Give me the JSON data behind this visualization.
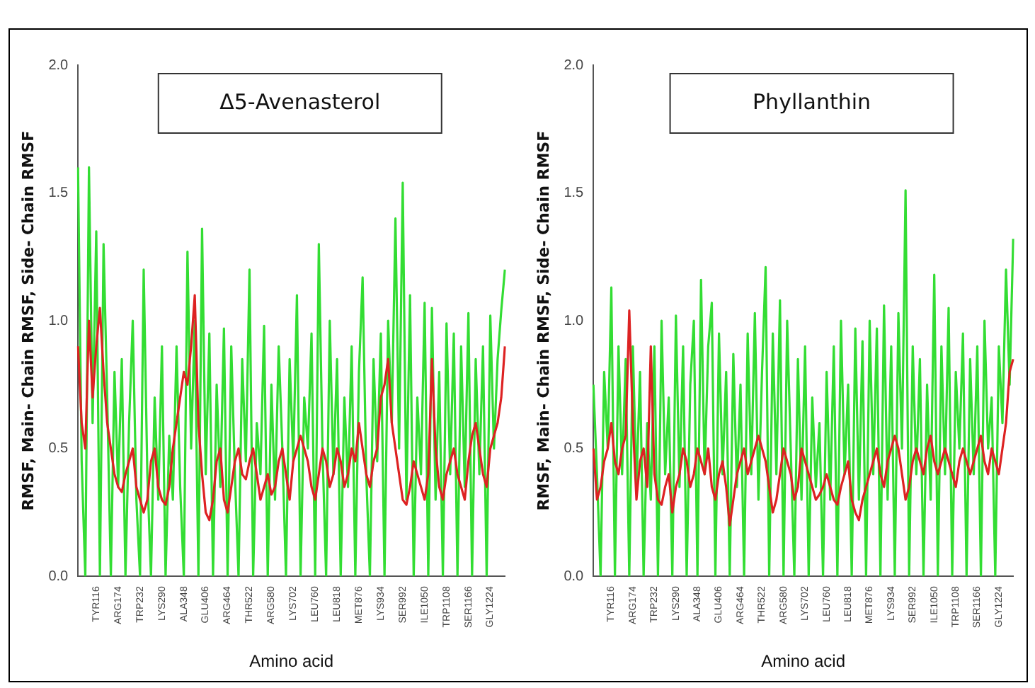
{
  "chart_data": [
    {
      "type": "line",
      "title": "Δ5-Avenasterol",
      "xlabel": "Amino acid",
      "ylabel": "RMSF, Main- Chain RMSF, Side- Chain RMSF",
      "ylim": [
        0,
        2
      ],
      "yticks": [
        {
          "value": 0,
          "label": "0.0"
        },
        {
          "value": 0.5,
          "label": "0.5"
        },
        {
          "value": 1,
          "label": "1.0"
        },
        {
          "value": 1.5,
          "label": "1.5"
        },
        {
          "value": 2,
          "label": "2.0"
        }
      ],
      "grid": false,
      "legend": false,
      "marker": "none",
      "categories": [
        null,
        null,
        null,
        null,
        null,
        "TYR116",
        null,
        null,
        null,
        null,
        null,
        "ARG174",
        null,
        null,
        null,
        null,
        null,
        "TRP232",
        null,
        null,
        null,
        null,
        null,
        "LYS290",
        null,
        null,
        null,
        null,
        null,
        "ALA348",
        null,
        null,
        null,
        null,
        null,
        "GLU406",
        null,
        null,
        null,
        null,
        null,
        "ARG464",
        null,
        null,
        null,
        null,
        null,
        "THR522",
        null,
        null,
        null,
        null,
        null,
        "ARG580",
        null,
        null,
        null,
        null,
        null,
        "LYS702",
        null,
        null,
        null,
        null,
        null,
        "LEU760",
        null,
        null,
        null,
        null,
        null,
        "LEU818",
        null,
        null,
        null,
        null,
        null,
        "MET876",
        null,
        null,
        null,
        null,
        null,
        "LYS934",
        null,
        null,
        null,
        null,
        null,
        "SER992",
        null,
        null,
        null,
        null,
        null,
        "ILE1050",
        null,
        null,
        null,
        null,
        null,
        "TRP1108",
        null,
        null,
        null,
        null,
        null,
        "SER1166",
        null,
        null,
        null,
        null,
        null,
        "GLY1224",
        null,
        null,
        null,
        null
      ],
      "series": [
        {
          "color": "#33dd33",
          "values": [
            1.6,
            0.45,
            0,
            1.6,
            0.6,
            1.35,
            0,
            1.3,
            0.7,
            0,
            0.8,
            0.35,
            0.85,
            0,
            0.6,
            1.0,
            0.3,
            0,
            1.2,
            0.4,
            0,
            0.7,
            0.3,
            0.9,
            0,
            0.55,
            0.3,
            0.9,
            0.35,
            0,
            1.27,
            0.5,
            1.0,
            0,
            1.36,
            0.4,
            0.95,
            0,
            0.75,
            0.35,
            0.97,
            0,
            0.9,
            0.4,
            0,
            0.85,
            0.45,
            1.2,
            0,
            0.6,
            0.4,
            0.98,
            0,
            0.75,
            0.3,
            0.9,
            0.5,
            0,
            0.85,
            0.45,
            1.1,
            0,
            0.7,
            0.5,
            0.95,
            0,
            1.3,
            0.5,
            0,
            1.0,
            0.4,
            0.85,
            0,
            0.7,
            0.35,
            0.9,
            0,
            0.8,
            1.17,
            0.4,
            0,
            0.85,
            0.45,
            0.95,
            0,
            1.0,
            0.6,
            1.4,
            0.5,
            1.54,
            0.3,
            1.1,
            0,
            0.7,
            0.4,
            1.07,
            0,
            1.05,
            0.3,
            0.8,
            0,
            0.99,
            0.4,
            0.95,
            0,
            0.9,
            0.35,
            1.03,
            0,
            0.85,
            0.4,
            0.9,
            0,
            1.02,
            0.5,
            0.85,
            1.04,
            1.2
          ]
        },
        {
          "color": "#dd2222",
          "values": [
            0.9,
            0.6,
            0.5,
            1.0,
            0.7,
            0.9,
            1.05,
            0.8,
            0.6,
            0.5,
            0.4,
            0.35,
            0.33,
            0.4,
            0.45,
            0.5,
            0.35,
            0.3,
            0.25,
            0.3,
            0.45,
            0.5,
            0.35,
            0.3,
            0.28,
            0.35,
            0.5,
            0.6,
            0.7,
            0.8,
            0.75,
            0.9,
            1.1,
            0.6,
            0.4,
            0.25,
            0.22,
            0.3,
            0.45,
            0.5,
            0.3,
            0.25,
            0.35,
            0.45,
            0.5,
            0.4,
            0.38,
            0.45,
            0.5,
            0.4,
            0.3,
            0.35,
            0.4,
            0.32,
            0.35,
            0.45,
            0.5,
            0.4,
            0.3,
            0.45,
            0.5,
            0.55,
            0.5,
            0.45,
            0.35,
            0.3,
            0.4,
            0.5,
            0.45,
            0.35,
            0.4,
            0.5,
            0.45,
            0.35,
            0.4,
            0.5,
            0.45,
            0.6,
            0.5,
            0.4,
            0.35,
            0.45,
            0.5,
            0.7,
            0.75,
            0.85,
            0.6,
            0.5,
            0.4,
            0.3,
            0.28,
            0.35,
            0.45,
            0.4,
            0.35,
            0.3,
            0.4,
            0.85,
            0.5,
            0.35,
            0.3,
            0.4,
            0.45,
            0.5,
            0.4,
            0.35,
            0.3,
            0.45,
            0.55,
            0.6,
            0.5,
            0.4,
            0.35,
            0.5,
            0.55,
            0.6,
            0.7,
            0.9
          ]
        }
      ]
    },
    {
      "type": "line",
      "title": "Phyllanthin",
      "xlabel": "Amino acid",
      "ylabel": "RMSF, Main- Chain RMSF, Side- Chain RMSF",
      "ylim": [
        0,
        2
      ],
      "yticks": [
        {
          "value": 0,
          "label": "0.0"
        },
        {
          "value": 0.5,
          "label": "0.5"
        },
        {
          "value": 1,
          "label": "1.0"
        },
        {
          "value": 1.5,
          "label": "1.5"
        },
        {
          "value": 2,
          "label": "2.0"
        }
      ],
      "grid": false,
      "legend": false,
      "marker": "none",
      "categories": [
        null,
        null,
        null,
        null,
        null,
        "TYR116",
        null,
        null,
        null,
        null,
        null,
        "ARG174",
        null,
        null,
        null,
        null,
        null,
        "TRP232",
        null,
        null,
        null,
        null,
        null,
        "LYS290",
        null,
        null,
        null,
        null,
        null,
        "ALA348",
        null,
        null,
        null,
        null,
        null,
        "GLU406",
        null,
        null,
        null,
        null,
        null,
        "ARG464",
        null,
        null,
        null,
        null,
        null,
        "THR522",
        null,
        null,
        null,
        null,
        null,
        "ARG580",
        null,
        null,
        null,
        null,
        null,
        "LYS702",
        null,
        null,
        null,
        null,
        null,
        "LEU760",
        null,
        null,
        null,
        null,
        null,
        "LEU818",
        null,
        null,
        null,
        null,
        null,
        "MET876",
        null,
        null,
        null,
        null,
        null,
        "LYS934",
        null,
        null,
        null,
        null,
        null,
        "SER992",
        null,
        null,
        null,
        null,
        null,
        "ILE1050",
        null,
        null,
        null,
        null,
        null,
        "TRP1108",
        null,
        null,
        null,
        null,
        null,
        "SER1166",
        null,
        null,
        null,
        null,
        null,
        "GLY1224",
        null,
        null,
        null,
        null
      ],
      "series": [
        {
          "color": "#33dd33",
          "values": [
            0.75,
            0.4,
            0,
            0.8,
            0.5,
            1.13,
            0,
            0.9,
            0.4,
            0.85,
            0,
            0.9,
            0.35,
            0.8,
            0,
            0.6,
            0.3,
            0.9,
            0,
            1.0,
            0.4,
            0.7,
            0,
            1.02,
            0.35,
            0.9,
            0,
            0.75,
            1.0,
            0,
            1.16,
            0.4,
            0.9,
            1.07,
            0,
            0.95,
            0.4,
            0.8,
            0,
            0.87,
            0.35,
            0.75,
            0,
            0.95,
            0.4,
            1.03,
            0.3,
            0.8,
            1.21,
            0,
            0.95,
            0.4,
            1.08,
            0,
            1.0,
            0.5,
            0,
            0.85,
            0.3,
            0.9,
            0,
            0.7,
            0.35,
            0.6,
            0,
            0.8,
            0.3,
            0.9,
            0,
            1.0,
            0.4,
            0.75,
            0,
            0.97,
            0.3,
            0.92,
            0,
            1.0,
            0.4,
            0.97,
            0,
            1.06,
            0.3,
            0.9,
            0,
            1.03,
            0.5,
            1.51,
            0,
            0.9,
            0.4,
            0.85,
            0,
            0.75,
            0.3,
            1.18,
            0,
            0.9,
            0.4,
            1.05,
            0,
            0.8,
            0.5,
            0.95,
            0,
            0.85,
            0.4,
            0.9,
            0,
            1.0,
            0.5,
            0.7,
            0,
            0.9,
            0.6,
            1.2,
            0.75,
            1.32
          ]
        },
        {
          "color": "#dd2222",
          "values": [
            0.5,
            0.3,
            0.35,
            0.45,
            0.5,
            0.6,
            0.45,
            0.4,
            0.5,
            0.55,
            1.04,
            0.6,
            0.3,
            0.45,
            0.5,
            0.35,
            0.9,
            0.4,
            0.3,
            0.28,
            0.35,
            0.4,
            0.25,
            0.35,
            0.4,
            0.5,
            0.45,
            0.35,
            0.4,
            0.5,
            0.45,
            0.4,
            0.5,
            0.35,
            0.3,
            0.4,
            0.45,
            0.35,
            0.2,
            0.3,
            0.4,
            0.45,
            0.5,
            0.4,
            0.45,
            0.5,
            0.55,
            0.5,
            0.45,
            0.35,
            0.25,
            0.3,
            0.4,
            0.5,
            0.45,
            0.4,
            0.3,
            0.35,
            0.5,
            0.45,
            0.4,
            0.35,
            0.3,
            0.32,
            0.35,
            0.4,
            0.35,
            0.3,
            0.28,
            0.35,
            0.4,
            0.45,
            0.3,
            0.25,
            0.22,
            0.3,
            0.35,
            0.4,
            0.45,
            0.5,
            0.4,
            0.35,
            0.45,
            0.5,
            0.55,
            0.5,
            0.4,
            0.3,
            0.35,
            0.45,
            0.5,
            0.45,
            0.4,
            0.5,
            0.55,
            0.45,
            0.4,
            0.45,
            0.5,
            0.45,
            0.4,
            0.35,
            0.45,
            0.5,
            0.45,
            0.4,
            0.45,
            0.5,
            0.55,
            0.45,
            0.4,
            0.5,
            0.45,
            0.4,
            0.5,
            0.6,
            0.8,
            0.85
          ]
        }
      ]
    }
  ]
}
